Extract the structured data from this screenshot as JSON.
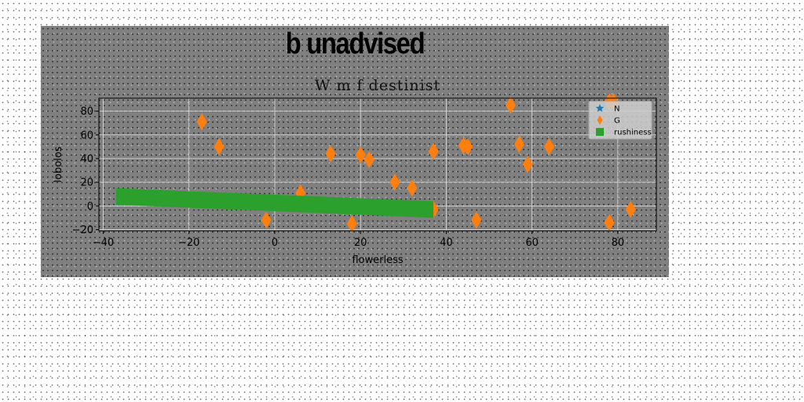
{
  "figure": {
    "suptitle": "b unadvised"
  },
  "chart_data": {
    "type": "scatter",
    "title": "W m f destinist",
    "xlabel": "flowerless",
    "ylabel": "lobolos",
    "xlim": [
      -41,
      89
    ],
    "ylim": [
      -21,
      91
    ],
    "xticks": [
      -40,
      -20,
      0,
      20,
      40,
      60,
      80
    ],
    "yticks": [
      -20,
      0,
      20,
      40,
      60,
      80
    ],
    "grid": true,
    "legend_position": "upper right",
    "series": [
      {
        "name": "N",
        "marker": "star",
        "color": "#1f77b4",
        "points": []
      },
      {
        "name": "G",
        "marker": "thin-diamond",
        "color": "#ff7f0e",
        "points": [
          [
            -17,
            71
          ],
          [
            -13,
            50
          ],
          [
            -2,
            -12
          ],
          [
            6,
            11
          ],
          [
            13,
            44
          ],
          [
            18,
            -15
          ],
          [
            20,
            43
          ],
          [
            22,
            39
          ],
          [
            28,
            20
          ],
          [
            32,
            15
          ],
          [
            37,
            46
          ],
          [
            37,
            -3
          ],
          [
            44,
            51
          ],
          [
            45,
            50
          ],
          [
            47,
            -12
          ],
          [
            55,
            85
          ],
          [
            57,
            52
          ],
          [
            59,
            35
          ],
          [
            64,
            50
          ],
          [
            78,
            -14
          ],
          [
            78,
            88
          ],
          [
            79,
            88
          ],
          [
            83,
            -3
          ]
        ]
      },
      {
        "name": "rushiness",
        "marker": "filled-band",
        "color": "#2ca02c",
        "band": {
          "x": [
            -37,
            37
          ],
          "upper": [
            15,
            4
          ],
          "lower": [
            1,
            -10
          ]
        }
      }
    ]
  }
}
